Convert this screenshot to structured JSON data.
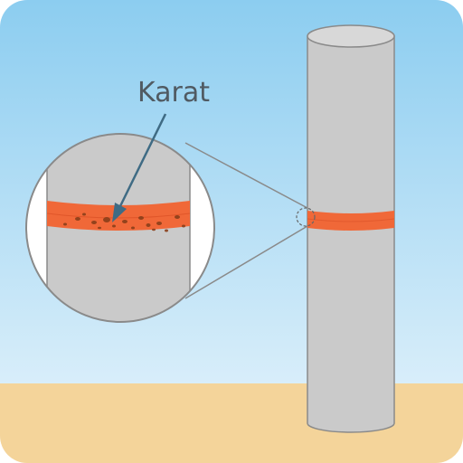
{
  "diagram": {
    "callout_label": "Karat"
  },
  "colors": {
    "sky_top": "#8ccdf0",
    "sky_bottom": "#d9eefa",
    "ground": "#f4d49a",
    "pole_fill": "#cacaca",
    "pole_stroke": "#8a8a8a",
    "pole_top": "#d8d8d8",
    "rust_band": "#f06838",
    "rust_spots": "#8a3f1a",
    "guide_lines": "#8a8a8a",
    "arrow": "#3f6b84",
    "label": "#505a62"
  },
  "icons": {
    "pole": "cylinder-pole",
    "magnifier": "magnifier-circle",
    "arrow": "pointer-arrow"
  }
}
